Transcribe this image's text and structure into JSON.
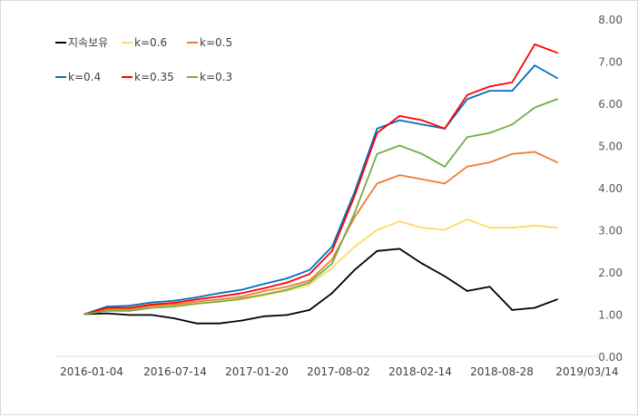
{
  "chart_data": {
    "type": "line",
    "title": "",
    "xlabel": "",
    "ylabel": "",
    "ylim": [
      0,
      8
    ],
    "yticks": [
      "0.00",
      "1.00",
      "2.00",
      "3.00",
      "4.00",
      "5.00",
      "6.00",
      "7.00",
      "8.00"
    ],
    "y_axis_side": "right",
    "grid": false,
    "legend_position": "top-left",
    "xticks": [
      "2016-01-04",
      "2016-07-14",
      "2017-01-20",
      "2017-08-02",
      "2018-02-14",
      "2018-08-28",
      "2019/03/14"
    ],
    "x": [
      "2016-01",
      "2016-03",
      "2016-05",
      "2016-07",
      "2016-09",
      "2016-11",
      "2017-01",
      "2017-03",
      "2017-05",
      "2017-07",
      "2017-09",
      "2017-11",
      "2017-12",
      "2018-01",
      "2018-02",
      "2018-04",
      "2018-06",
      "2018-08",
      "2018-10",
      "2018-12",
      "2019-02",
      "2019-03"
    ],
    "series": [
      {
        "name": "지속보유",
        "color": "#000000",
        "values": [
          1.0,
          1.02,
          0.98,
          0.98,
          0.9,
          0.78,
          0.78,
          0.85,
          0.95,
          0.98,
          1.1,
          1.5,
          2.05,
          2.5,
          2.55,
          2.2,
          1.9,
          1.55,
          1.65,
          1.1,
          1.15,
          1.35
        ]
      },
      {
        "name": "k=0.6",
        "color": "#ffd966",
        "values": [
          1.0,
          1.1,
          1.1,
          1.18,
          1.2,
          1.25,
          1.3,
          1.35,
          1.45,
          1.55,
          1.7,
          2.1,
          2.6,
          3.0,
          3.2,
          3.05,
          3.0,
          3.25,
          3.05,
          3.05,
          3.1,
          3.05
        ]
      },
      {
        "name": "k=0.5",
        "color": "#ed7d31",
        "values": [
          1.0,
          1.12,
          1.12,
          1.2,
          1.23,
          1.3,
          1.35,
          1.42,
          1.55,
          1.65,
          1.8,
          2.3,
          3.3,
          4.1,
          4.3,
          4.2,
          4.1,
          4.5,
          4.6,
          4.8,
          4.85,
          4.6
        ]
      },
      {
        "name": "k=0.4",
        "color": "#0070c0",
        "values": [
          1.0,
          1.18,
          1.2,
          1.28,
          1.32,
          1.4,
          1.5,
          1.58,
          1.72,
          1.85,
          2.05,
          2.6,
          3.9,
          5.4,
          5.6,
          5.5,
          5.4,
          6.1,
          6.3,
          6.3,
          6.9,
          6.6
        ]
      },
      {
        "name": "k=0.35",
        "color": "#ff0000",
        "values": [
          1.0,
          1.15,
          1.15,
          1.23,
          1.27,
          1.35,
          1.42,
          1.5,
          1.62,
          1.75,
          1.95,
          2.5,
          3.8,
          5.3,
          5.7,
          5.6,
          5.4,
          6.2,
          6.4,
          6.5,
          7.4,
          7.2
        ]
      },
      {
        "name": "k=0.3",
        "color": "#70ad47",
        "values": [
          1.0,
          1.08,
          1.08,
          1.15,
          1.18,
          1.25,
          1.3,
          1.37,
          1.47,
          1.58,
          1.75,
          2.2,
          3.4,
          4.8,
          5.0,
          4.8,
          4.5,
          5.2,
          5.3,
          5.5,
          5.9,
          6.1
        ]
      }
    ]
  }
}
